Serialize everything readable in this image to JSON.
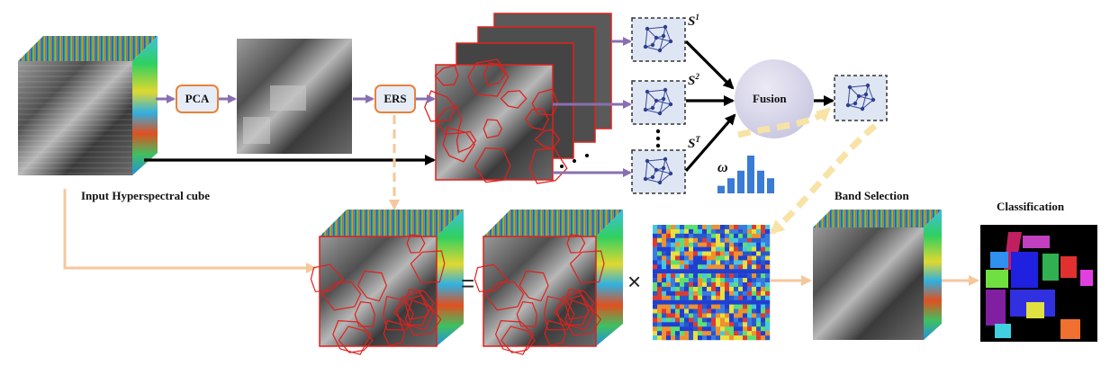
{
  "labels": {
    "input_cube": "Input Hyperspectral cube",
    "pca": "PCA",
    "ers": "ERS",
    "fusion": "Fusion",
    "band_selection": "Band Selection",
    "classification": "Classification",
    "omega": "ω",
    "equals": "=",
    "times": "×",
    "s_symbol": "S",
    "s1_sup": "1",
    "s2_sup": "2",
    "sT_sup": "T"
  },
  "colors": {
    "arrow_purple": "#8a6fb0",
    "arrow_black": "#000000",
    "arrow_orange": "#f5c79c",
    "box_border": "#e8823a",
    "box_fill": "#e7edf6",
    "fusion_fill": "#d7d6ea",
    "graph_node": "#2d3f8f",
    "bar_blue": "#3a7bd5",
    "segment_red": "#e0201c",
    "dashed_yellow": "#f7e3a6"
  },
  "bar_chart": {
    "values": [
      1,
      2,
      3,
      5,
      3,
      2
    ]
  }
}
